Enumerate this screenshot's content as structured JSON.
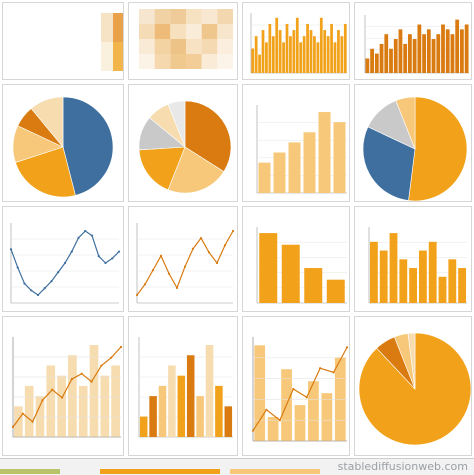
{
  "colors": {
    "orange": "#f2a21a",
    "dark_orange": "#d97b10",
    "light_orange": "#f7c879",
    "pale": "#f6dcae",
    "blue": "#3f6f9f",
    "gray": "#c9c9c9"
  },
  "watermark": "stablediffusionweb.com",
  "chart_data": [
    {
      "type": "heatmap",
      "cells": [
        [
          "#f6e2c4",
          "#e9a24a"
        ],
        [
          "#faf0de",
          "#f2b54b"
        ]
      ]
    },
    {
      "type": "heatmap",
      "cells": [
        [
          "#f6e5cf",
          "#f1d2a4",
          "#efcb99",
          "#f6e1c1",
          "#f8e8d2",
          "#f3d7ae"
        ],
        [
          "#f5dcb6",
          "#eebc78",
          "#f6e0be",
          "#f9ecd9",
          "#efc68c",
          "#f8e6cc"
        ],
        [
          "#f9ead6",
          "#f3d3a2",
          "#eec387",
          "#f7e2c3",
          "#f4d9b2",
          "#fbeedf"
        ],
        [
          "#fcf3e7",
          "#f5d8ad",
          "#f0c98f",
          "#f2cd98",
          "#f9ebd6",
          "#fcf4e8"
        ]
      ]
    },
    {
      "type": "bar",
      "values": [
        4,
        6,
        3,
        7,
        5,
        8,
        6,
        9,
        7,
        5,
        8,
        6,
        7,
        9,
        5,
        6,
        8,
        7,
        6,
        5,
        9,
        7,
        6,
        8,
        5,
        7,
        6,
        8
      ]
    },
    {
      "type": "bar",
      "values": [
        3,
        5,
        4,
        6,
        8,
        5,
        7,
        9,
        6,
        8,
        7,
        10,
        8,
        9,
        7,
        8,
        10,
        9,
        8,
        11,
        9,
        10
      ]
    },
    {
      "type": "pie",
      "values": [
        46,
        24,
        12,
        7,
        11
      ]
    },
    {
      "type": "pie",
      "values": [
        34,
        22,
        18,
        12,
        8,
        6
      ]
    },
    {
      "type": "bar",
      "values": [
        3,
        4,
        5,
        6,
        8,
        7
      ]
    },
    {
      "type": "pie",
      "values": [
        52,
        30,
        12,
        6
      ]
    },
    {
      "type": "line",
      "y": [
        5,
        4.2,
        3.5,
        3.2,
        3,
        3.3,
        3.6,
        4,
        4.4,
        4.9,
        5.5,
        5.8,
        5.6,
        4.7,
        4.4,
        4.6,
        4.9
      ]
    },
    {
      "type": "line",
      "y": [
        4,
        4.3,
        4.7,
        5.1,
        4.6,
        4.2,
        4.8,
        5.3,
        5.6,
        5.2,
        4.9,
        5.4,
        5.8
      ]
    },
    {
      "type": "bar",
      "values": [
        6,
        5,
        3,
        2
      ]
    },
    {
      "type": "bar",
      "values": [
        7,
        6,
        8,
        5,
        4,
        6,
        7,
        3,
        5,
        4
      ]
    },
    {
      "type": "line",
      "y": [
        3,
        3.5,
        3.2,
        4,
        4.4,
        4.1,
        4.8,
        5,
        4.7,
        5.3,
        5.6,
        6
      ]
    },
    {
      "type": "bar",
      "values": [
        2,
        4,
        5,
        7,
        6,
        8,
        4,
        9,
        5,
        3
      ]
    },
    {
      "type": "pie",
      "values": [
        88,
        6,
        4,
        2
      ]
    }
  ]
}
